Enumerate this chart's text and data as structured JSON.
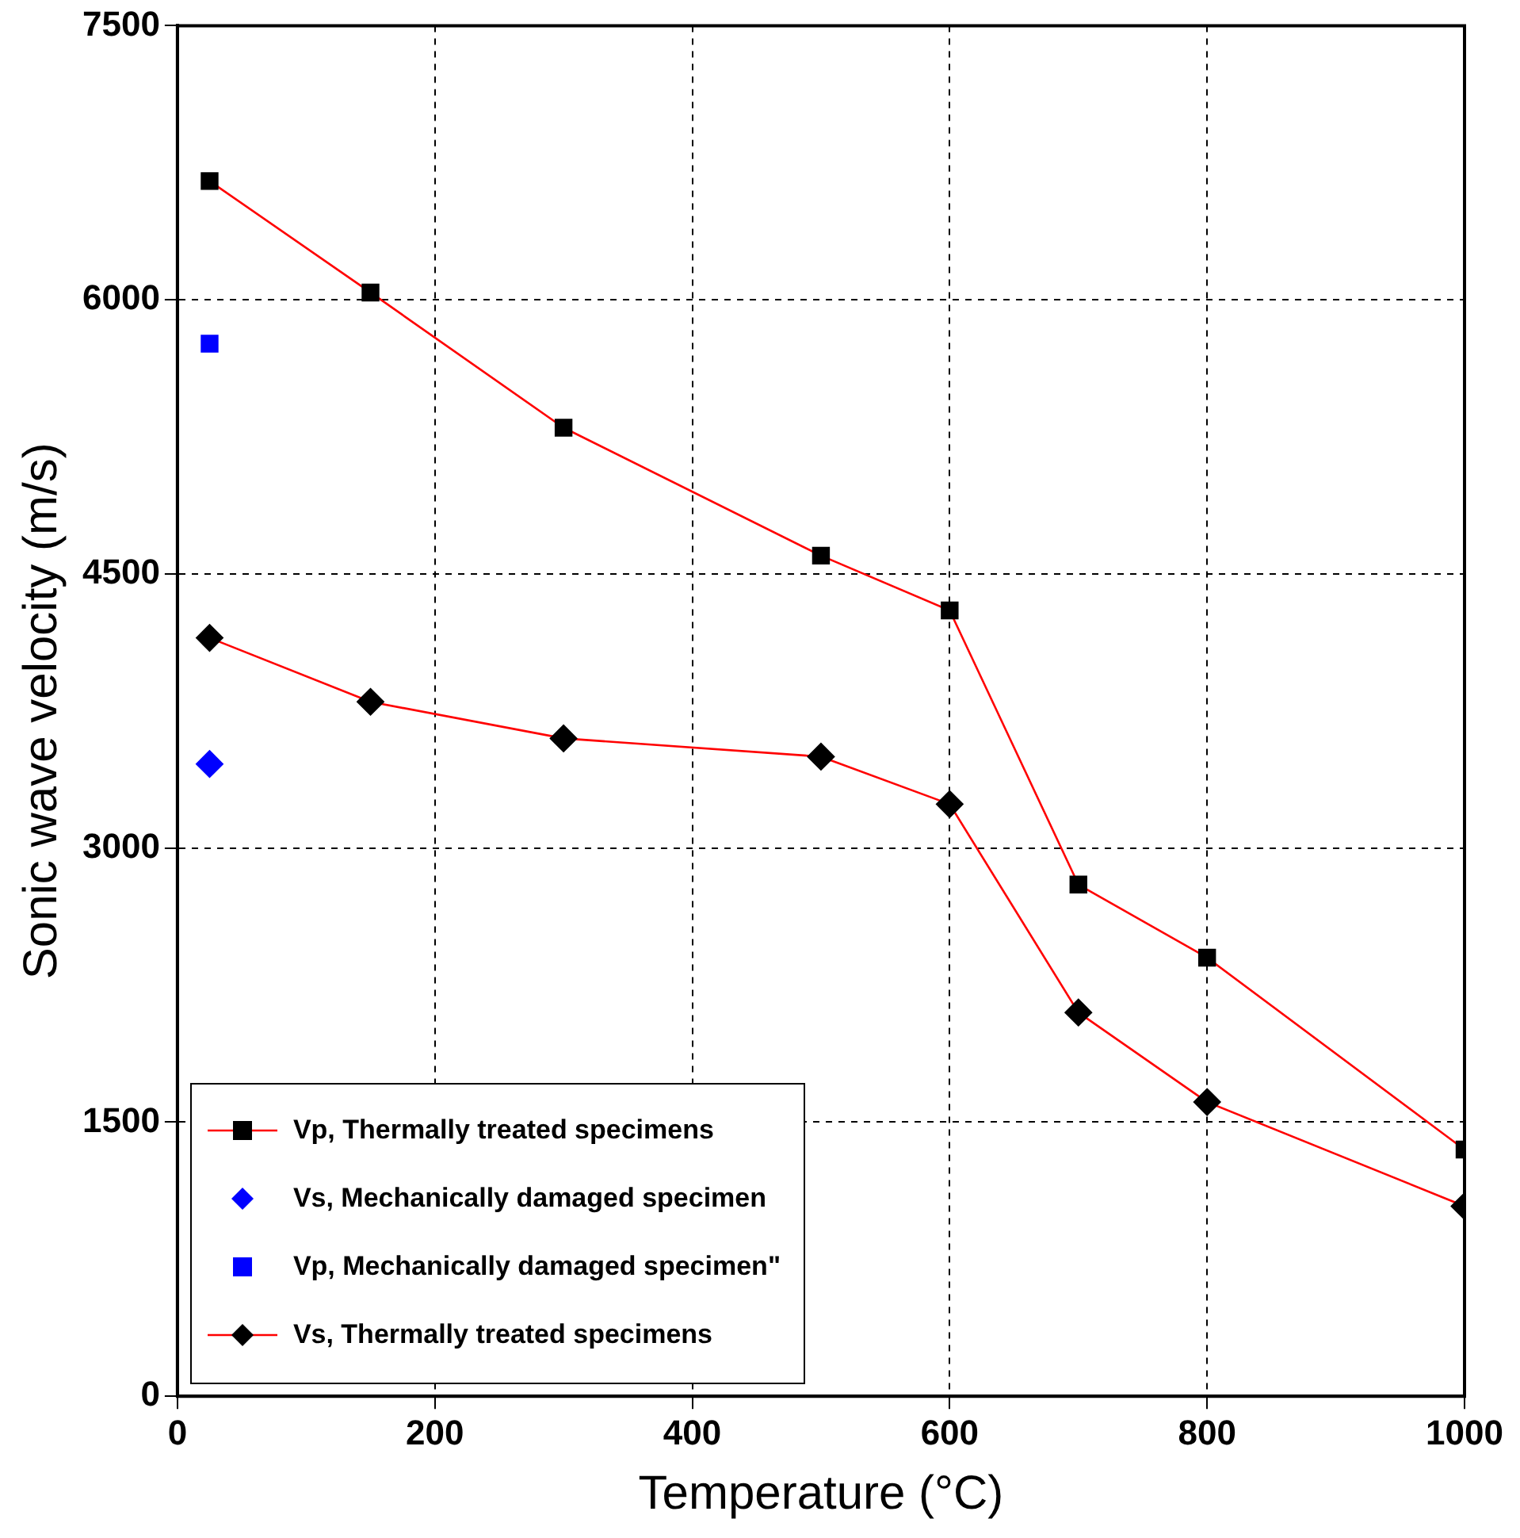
{
  "chart_data": {
    "type": "line",
    "xlabel": "Temperature (°C)",
    "ylabel": "Sonic wave velocity (m/s)",
    "xlim": [
      0,
      1000
    ],
    "xticks": [
      0,
      200,
      400,
      600,
      800,
      1000
    ],
    "ylim": [
      0,
      7500
    ],
    "yticks": [
      0,
      1500,
      3000,
      4500,
      6000,
      7500
    ],
    "grid": true,
    "legend": "bottom left",
    "line_style": "solid",
    "series": [
      {
        "name": "Vp, Thermally treated specimens",
        "marker": "square",
        "color": "#ff0000",
        "colors": [
          "#000000",
          "#000000",
          "#000000",
          "#000000",
          "#000000",
          "#000000",
          "#000000",
          "#000000"
        ],
        "x": [
          25,
          150,
          300,
          500,
          600,
          700,
          800,
          1000
        ],
        "values": [
          6650,
          6040,
          5300,
          4600,
          4300,
          2800,
          2400,
          1350
        ]
      },
      {
        "name": "Vs, Mechanically damaged specimen",
        "type": "scatter",
        "marker": "diamond",
        "color": "#0000ff",
        "x": [
          25
        ],
        "values": [
          3460
        ]
      },
      {
        "name": "Vp, Mechanically damaged specimen\"",
        "type": "scatter",
        "marker": "square",
        "color": "#0000ff",
        "x": [
          25
        ],
        "values": [
          5760
        ]
      },
      {
        "name": "Vs, Thermally treated specimens",
        "marker": "diamond",
        "color": "#ff0000",
        "colors": [
          "#000000",
          "#000000",
          "#000000",
          "#000000",
          "#000000",
          "#000000",
          "#000000",
          "#000000"
        ],
        "x": [
          25,
          150,
          300,
          500,
          600,
          700,
          800,
          1000
        ],
        "values": [
          4150,
          3800,
          3600,
          3500,
          3240,
          2100,
          1610,
          1040
        ]
      }
    ]
  }
}
